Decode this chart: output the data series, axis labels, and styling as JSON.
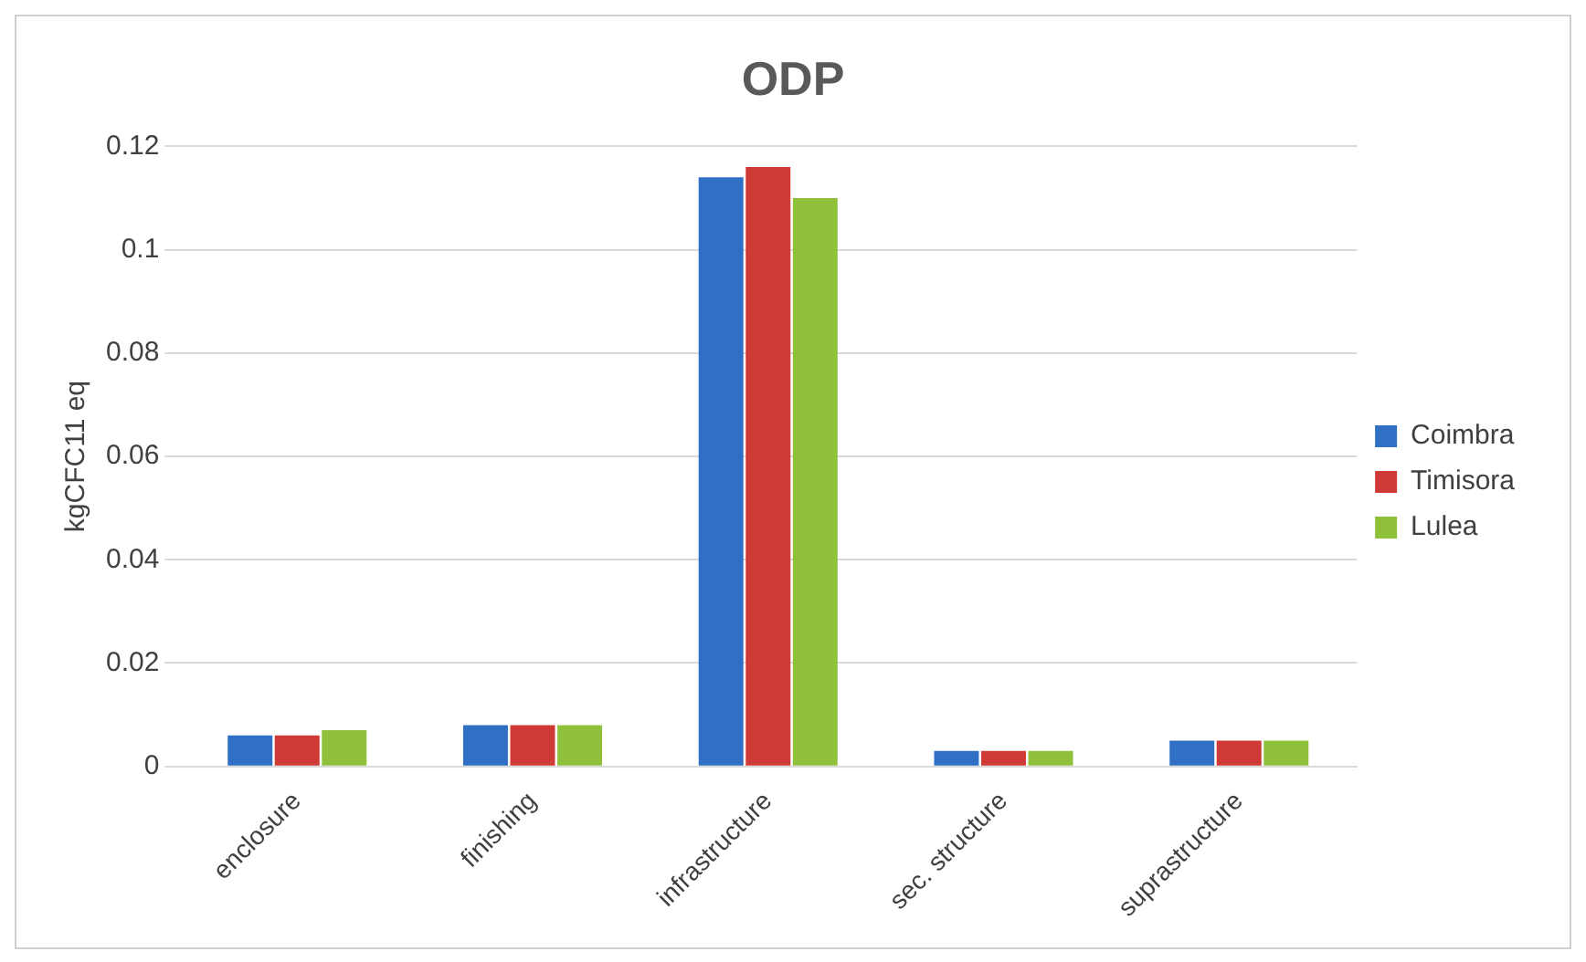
{
  "chart_data": {
    "type": "bar",
    "title": "ODP",
    "ylabel": "kgCFC11 eq",
    "categories": [
      "enclosure",
      "finishing",
      "infrastructure",
      "sec. structure",
      "suprastructure"
    ],
    "series": [
      {
        "name": "Coimbra",
        "color": "#2f6fc4",
        "values": [
          0.006,
          0.008,
          0.114,
          0.003,
          0.005
        ]
      },
      {
        "name": "Timisora",
        "color": "#d03a36",
        "values": [
          0.006,
          0.008,
          0.116,
          0.003,
          0.005
        ]
      },
      {
        "name": "Lulea",
        "color": "#8fc23a",
        "values": [
          0.007,
          0.008,
          0.11,
          0.003,
          0.005
        ]
      }
    ],
    "ylim": [
      0,
      0.12
    ],
    "yticks": [
      0,
      0.02,
      0.04,
      0.06,
      0.08,
      0.1,
      0.12
    ],
    "grid": "y",
    "legend": "right"
  }
}
